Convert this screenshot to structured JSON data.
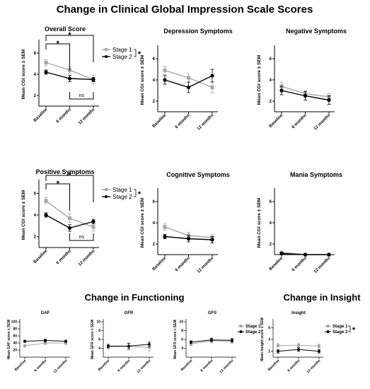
{
  "figure_title": "Change in Clinical Global Impression Scale Scores",
  "section_functioning": "Change in Functioning",
  "section_insight": "Change in Insight",
  "colors": {
    "stage1": "#a6a6a6",
    "stage2": "#000000"
  },
  "chart_data": [
    {
      "id": "overall",
      "type": "line",
      "title": "Overall Score",
      "ylabel": "Mean CGI score ± SEM",
      "ylim": [
        1,
        7
      ],
      "yticks": [
        2,
        4,
        6
      ],
      "categories": [
        "Baseline",
        "6 months",
        "12 months"
      ],
      "legend": [
        "Stage 1",
        "Stage 2"
      ],
      "legend_star": "*",
      "series": [
        {
          "name": "Stage 1",
          "values": [
            5.1,
            4.4,
            3.5
          ],
          "err": [
            0.3,
            0.3,
            0.4
          ]
        },
        {
          "name": "Stage 2",
          "values": [
            4.2,
            3.6,
            3.5
          ],
          "err": [
            0.2,
            0.3,
            0.2
          ]
        }
      ],
      "brackets": [
        {
          "from": 0,
          "to": 1,
          "label": "*"
        },
        {
          "from": 0,
          "to": 2,
          "label": "*"
        },
        {
          "from": 1,
          "to": 2,
          "label": "ns",
          "below": true
        }
      ]
    },
    {
      "id": "depression",
      "type": "line",
      "title": "Depression Symptoms",
      "ylabel": "Mean CGI score ± SEM",
      "ylim": [
        1,
        7
      ],
      "yticks": [
        2,
        4,
        6
      ],
      "categories": [
        "Baseline",
        "6 months",
        "12 months"
      ],
      "series": [
        {
          "name": "Stage 1",
          "values": [
            4.9,
            4.2,
            3.3
          ],
          "err": [
            0.4,
            0.4,
            0.5
          ]
        },
        {
          "name": "Stage 2",
          "values": [
            4.0,
            3.3,
            4.4
          ],
          "err": [
            0.4,
            0.5,
            0.6
          ]
        }
      ]
    },
    {
      "id": "negative",
      "type": "line",
      "title": "Negative Symptoms",
      "ylabel": "Mean CGI score ± SEM",
      "ylim": [
        1,
        7
      ],
      "yticks": [
        2,
        4,
        6
      ],
      "categories": [
        "Baseline",
        "6 months",
        "12 months"
      ],
      "series": [
        {
          "name": "Stage 1",
          "values": [
            3.4,
            2.7,
            2.4
          ],
          "err": [
            0.4,
            0.3,
            0.3
          ]
        },
        {
          "name": "Stage 2",
          "values": [
            3.0,
            2.5,
            2.1
          ],
          "err": [
            0.4,
            0.4,
            0.4
          ]
        }
      ]
    },
    {
      "id": "positive",
      "type": "line",
      "title": "Positive Symptoms",
      "ylabel": "Mean CGI score ± SEM",
      "ylim": [
        1,
        7
      ],
      "yticks": [
        2,
        4,
        6
      ],
      "categories": [
        "Baseline",
        "6 months",
        "12 months"
      ],
      "legend": [
        "Stage 1",
        "Stage 2"
      ],
      "legend_star": "*",
      "series": [
        {
          "name": "Stage 1",
          "values": [
            5.3,
            3.7,
            2.9
          ],
          "err": [
            0.3,
            0.4,
            0.4
          ]
        },
        {
          "name": "Stage 2",
          "values": [
            4.0,
            2.8,
            3.4
          ],
          "err": [
            0.2,
            0.3,
            0.2
          ]
        }
      ],
      "brackets": [
        {
          "from": 0,
          "to": 1,
          "label": "*"
        },
        {
          "from": 0,
          "to": 2,
          "label": "*"
        },
        {
          "from": 1,
          "to": 2,
          "label": "ns",
          "below": true
        }
      ]
    },
    {
      "id": "cognitive",
      "type": "line",
      "title": "Cognitive Symptoms",
      "ylabel": "Mean CGI score ± SEM",
      "ylim": [
        1,
        7
      ],
      "yticks": [
        2,
        4,
        6
      ],
      "categories": [
        "Baseline",
        "6 months",
        "12 months"
      ],
      "series": [
        {
          "name": "Stage 1",
          "values": [
            3.6,
            2.8,
            2.6
          ],
          "err": [
            0.3,
            0.3,
            0.3
          ]
        },
        {
          "name": "Stage 2",
          "values": [
            2.7,
            2.5,
            2.4
          ],
          "err": [
            0.2,
            0.3,
            0.3
          ]
        }
      ]
    },
    {
      "id": "mania",
      "type": "line",
      "title": "Mania Symptoms",
      "ylabel": "Mean CGI score ± SEM",
      "ylim": [
        1,
        7
      ],
      "yticks": [
        2,
        4,
        6
      ],
      "categories": [
        "Baseline",
        "6 months",
        "12 months"
      ],
      "series": [
        {
          "name": "Stage 1",
          "values": [
            1.2,
            1.0,
            1.0
          ],
          "err": [
            0.1,
            0.0,
            0.0
          ]
        },
        {
          "name": "Stage 2",
          "values": [
            1.1,
            1.0,
            1.0
          ],
          "err": [
            0.1,
            0.0,
            0.0
          ]
        }
      ]
    },
    {
      "id": "gaf",
      "type": "line",
      "title": "GAF",
      "ylabel": "Mean GAF score ± SEM",
      "ylim": [
        0,
        100
      ],
      "yticks": [
        20,
        40,
        60,
        80,
        100
      ],
      "categories": [
        "Baseline",
        "6 months",
        "12 months"
      ],
      "series": [
        {
          "name": "Stage 1",
          "values": [
            32,
            40,
            40
          ],
          "err": [
            4,
            4,
            4
          ]
        },
        {
          "name": "Stage 2",
          "values": [
            45,
            47,
            45
          ],
          "err": [
            3,
            4,
            3
          ]
        }
      ]
    },
    {
      "id": "gfr",
      "type": "line",
      "title": "GFR",
      "ylabel": "Mean GFR score ± SEM",
      "ylim": [
        2,
        10
      ],
      "yticks": [
        4,
        6,
        8,
        10
      ],
      "categories": [
        "Baseline",
        "6 months",
        "12 months"
      ],
      "series": [
        {
          "name": "Stage 1",
          "values": [
            4.4,
            4.4,
            4.2
          ],
          "err": [
            0.5,
            0.8,
            0.8
          ]
        },
        {
          "name": "Stage 2",
          "values": [
            4.5,
            4.5,
            4.9
          ],
          "err": [
            0.4,
            0.6,
            0.5
          ]
        }
      ]
    },
    {
      "id": "gfs",
      "type": "line",
      "title": "GFS",
      "ylabel": "Mean GFS score ± SEM",
      "ylim": [
        2,
        10
      ],
      "yticks": [
        4,
        6,
        8,
        10
      ],
      "categories": [
        "Baseline",
        "6 months",
        "12 months"
      ],
      "legend": [
        "Stage 1",
        "Stage 2"
      ],
      "series": [
        {
          "name": "Stage 1",
          "values": [
            5.0,
            5.7,
            5.6
          ],
          "err": [
            0.4,
            0.5,
            0.5
          ]
        },
        {
          "name": "Stage 2",
          "values": [
            5.4,
            5.9,
            5.8
          ],
          "err": [
            0.3,
            0.4,
            0.4
          ]
        }
      ]
    },
    {
      "id": "insight",
      "type": "line",
      "title": "Insight",
      "ylabel": "Mean Insight score ± SEM",
      "ylim": [
        1,
        7
      ],
      "yticks": [
        2,
        4,
        6
      ],
      "categories": [
        "Baseline",
        "6 months",
        "12 months"
      ],
      "legend": [
        "Stage 1",
        "Stage 2"
      ],
      "legend_star": "*",
      "series": [
        {
          "name": "Stage 1",
          "values": [
            3.0,
            3.0,
            2.9
          ],
          "err": [
            0.3,
            0.3,
            0.3
          ]
        },
        {
          "name": "Stage 2",
          "values": [
            2.0,
            2.3,
            2.0
          ],
          "err": [
            0.3,
            0.3,
            0.3
          ]
        }
      ]
    }
  ]
}
